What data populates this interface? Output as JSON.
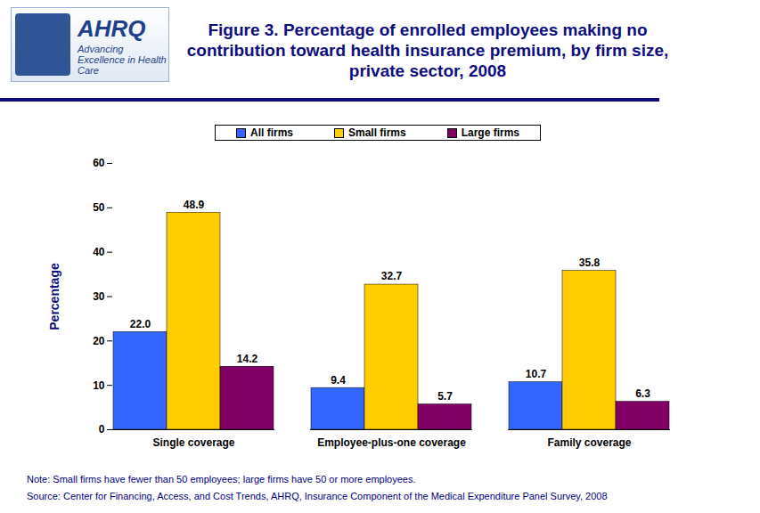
{
  "chart_data": {
    "type": "bar",
    "title": "Figure 3. Percentage of enrolled employees making no contribution toward health insurance premium, by firm size, private sector, 2008",
    "logo": "AHRQ",
    "logo_tagline": "Advancing Excellence in Health Care",
    "y_label": "Percentage",
    "categories": [
      "Single coverage",
      "Employee-plus-one coverage",
      "Family coverage"
    ],
    "series": [
      {
        "name": "All firms",
        "color": "#3366ff",
        "values": [
          22.0,
          9.4,
          10.7
        ],
        "value_labels": [
          "22.0",
          "9.4",
          "10.7"
        ]
      },
      {
        "name": "Small firms",
        "color": "#ffcc00",
        "values": [
          48.9,
          32.7,
          35.8
        ],
        "value_labels": [
          "48.9",
          "32.7",
          "35.8"
        ]
      },
      {
        "name": "Large firms",
        "color": "#800066",
        "values": [
          14.2,
          5.7,
          6.3
        ],
        "value_labels": [
          "14.2",
          "5.7",
          "6.3"
        ]
      }
    ],
    "ylim": [
      0,
      60
    ],
    "yticks": [
      0,
      10,
      20,
      30,
      40,
      50,
      60
    ],
    "grid": false,
    "legend": "top",
    "data_labels": true,
    "note": "Note: Small firms have fewer than 50 employees; large firms have 50 or more employees.",
    "source": "Source: Center for Financing, Access, and Cost Trends, AHRQ, Insurance Component of the Medical Expenditure Panel Survey, 2008"
  }
}
